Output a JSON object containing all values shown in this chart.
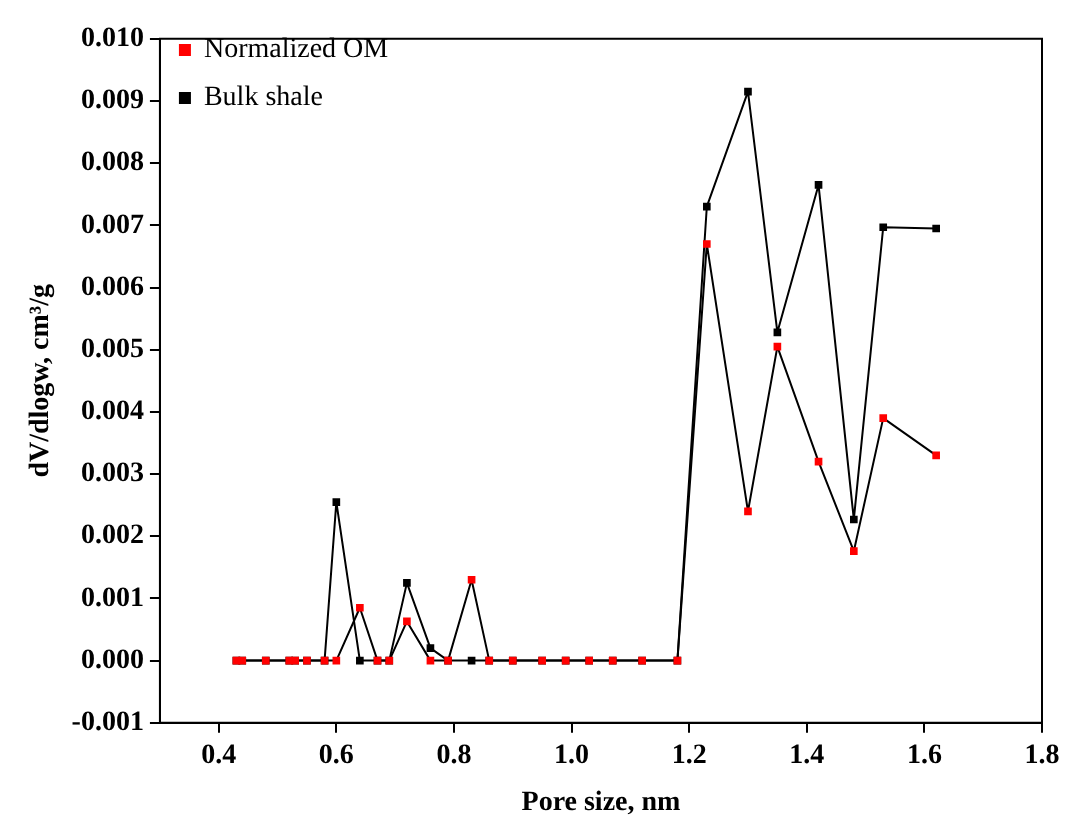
{
  "chart_data": {
    "type": "line",
    "xlabel": "Pore size, nm",
    "ylabel": "dV/dlogw, cm³/g",
    "x": [
      0.43,
      0.44,
      0.48,
      0.52,
      0.53,
      0.55,
      0.58,
      0.6,
      0.64,
      0.67,
      0.69,
      0.72,
      0.76,
      0.79,
      0.83,
      0.86,
      0.9,
      0.95,
      0.99,
      1.03,
      1.07,
      1.12,
      1.18,
      1.23,
      1.3,
      1.35,
      1.42,
      1.48,
      1.53,
      1.62
    ],
    "series": [
      {
        "name": "Normalized OM",
        "color": "#ff0000",
        "values": [
          0,
          0,
          0,
          0,
          0,
          0,
          0,
          0,
          0.00085,
          0,
          0,
          0.00063,
          0,
          0,
          0.0013,
          0,
          0,
          0,
          0,
          0,
          0,
          0,
          0,
          0.0067,
          0.0024,
          0.00505,
          0.0032,
          0.00176,
          0.0039,
          0.0033
        ]
      },
      {
        "name": "Bulk shale",
        "color": "#000000",
        "values": [
          0,
          0,
          0,
          0,
          0,
          0,
          0,
          0.00255,
          0,
          0,
          0,
          0.00125,
          0.0002,
          0,
          0,
          0,
          0,
          0,
          0,
          0,
          0,
          0,
          0,
          0.0073,
          0.00915,
          0.00528,
          0.00765,
          0.00227,
          0.00697,
          0.00695
        ]
      }
    ],
    "xlim": [
      0.3,
      1.8
    ],
    "xticks": [
      0.4,
      0.6,
      0.8,
      {
        "value": 1,
        "label": "1.0"
      },
      1.2,
      1.4,
      1.6,
      1.8
    ],
    "ylim": [
      -0.001,
      0.01
    ],
    "yticks": [
      {
        "value": -0.001,
        "label": "-0.001"
      },
      {
        "value": 0,
        "label": "0.000"
      },
      {
        "value": 0.001,
        "label": "0.001"
      },
      {
        "value": 0.002,
        "label": "0.002"
      },
      {
        "value": 0.003,
        "label": "0.003"
      },
      {
        "value": 0.004,
        "label": "0.004"
      },
      {
        "value": 0.005,
        "label": "0.005"
      },
      {
        "value": 0.006,
        "label": "0.006"
      },
      {
        "value": 0.007,
        "label": "0.007"
      },
      {
        "value": 0.008,
        "label": "0.008"
      },
      {
        "value": 0.009,
        "label": "0.009"
      },
      {
        "value": 0.01,
        "label": "0.010"
      }
    ],
    "grid": false,
    "legend": "top left",
    "marker": "square",
    "line_style": "solid"
  }
}
